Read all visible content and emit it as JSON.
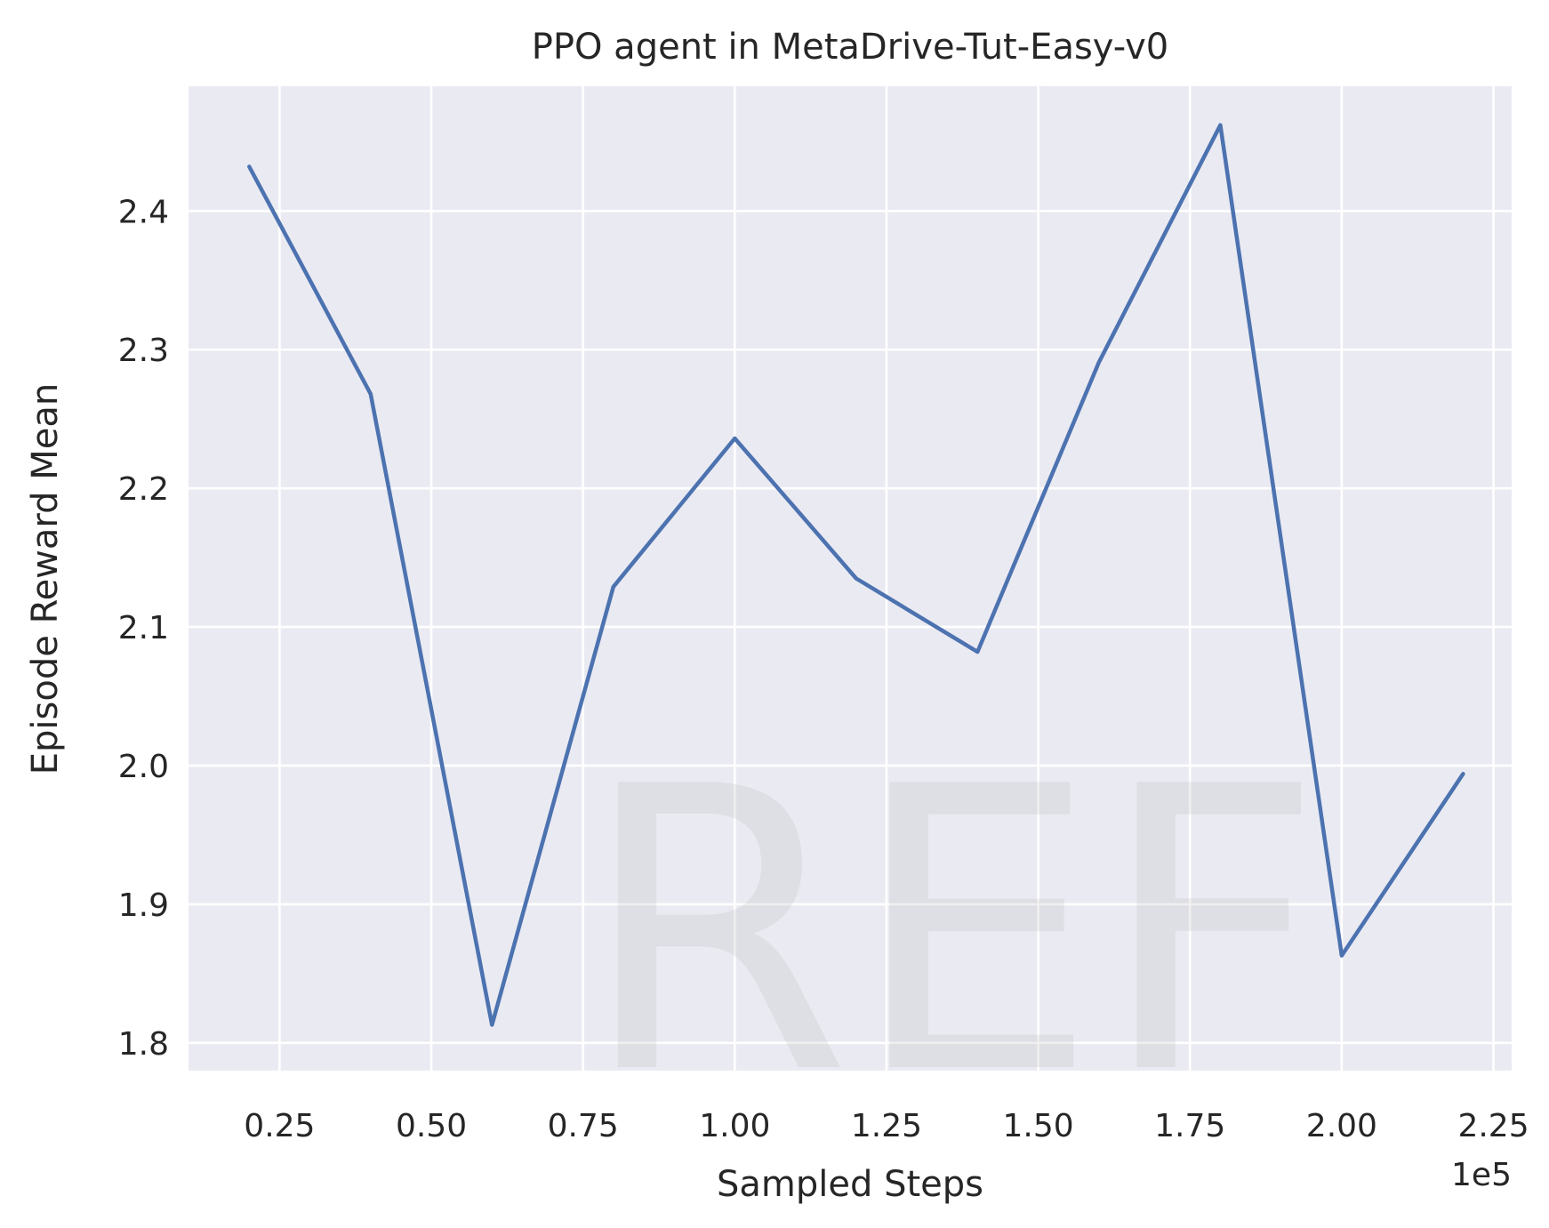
{
  "chart_data": {
    "type": "line",
    "title": "PPO agent in MetaDrive-Tut-Easy-v0",
    "xlabel": "Sampled Steps",
    "ylabel": "Episode Reward Mean",
    "x_offset_label": "1e5",
    "xlim": [
      0.1,
      2.28
    ],
    "ylim": [
      1.78,
      2.49
    ],
    "xticks": [
      0.25,
      0.5,
      0.75,
      1.0,
      1.25,
      1.5,
      1.75,
      2.0,
      2.25
    ],
    "xtick_labels": [
      "0.25",
      "0.50",
      "0.75",
      "1.00",
      "1.25",
      "1.50",
      "1.75",
      "2.00",
      "2.25"
    ],
    "yticks": [
      1.8,
      1.9,
      2.0,
      2.1,
      2.2,
      2.3,
      2.4
    ],
    "ytick_labels": [
      "1.8",
      "1.9",
      "2.0",
      "2.1",
      "2.2",
      "2.3",
      "2.4"
    ],
    "grid": true,
    "background_color": "#eaeaf2",
    "grid_color": "#ffffff",
    "series": [
      {
        "color": "#4c72b0",
        "x": [
          0.2,
          0.4,
          0.6,
          0.8,
          1.0,
          1.2,
          1.4,
          1.6,
          1.8,
          2.0,
          2.2
        ],
        "y": [
          2.432,
          2.268,
          1.813,
          2.129,
          2.236,
          2.135,
          2.082,
          2.291,
          2.462,
          1.863,
          1.994
        ]
      }
    ],
    "watermark": "REF"
  }
}
